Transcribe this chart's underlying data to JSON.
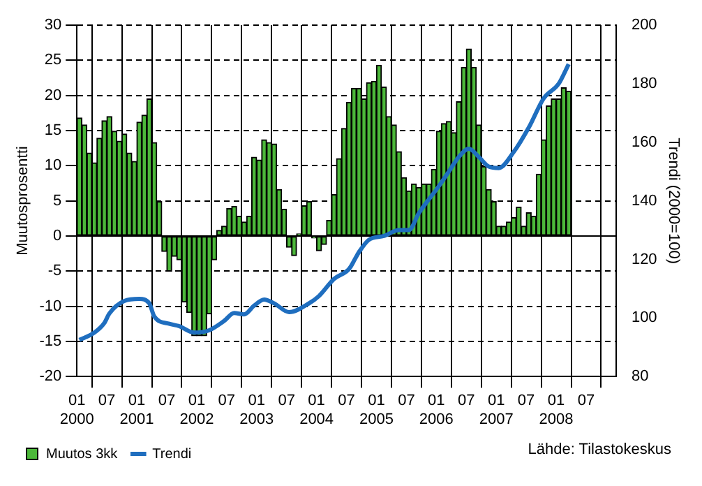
{
  "chart_data": {
    "type": "bar",
    "ylabel": "Muutosprosentti",
    "y2label": "Trendi (2000=100)",
    "x": [
      "2000-01",
      "2000-02",
      "2000-03",
      "2000-04",
      "2000-05",
      "2000-06",
      "2000-07",
      "2000-08",
      "2000-09",
      "2000-10",
      "2000-11",
      "2000-12",
      "2001-01",
      "2001-02",
      "2001-03",
      "2001-04",
      "2001-05",
      "2001-06",
      "2001-07",
      "2001-08",
      "2001-09",
      "2001-10",
      "2001-11",
      "2001-12",
      "2002-01",
      "2002-02",
      "2002-03",
      "2002-04",
      "2002-05",
      "2002-06",
      "2002-07",
      "2002-08",
      "2002-09",
      "2002-10",
      "2002-11",
      "2002-12",
      "2003-01",
      "2003-02",
      "2003-03",
      "2003-04",
      "2003-05",
      "2003-06",
      "2003-07",
      "2003-08",
      "2003-09",
      "2003-10",
      "2003-11",
      "2003-12",
      "2004-01",
      "2004-02",
      "2004-03",
      "2004-04",
      "2004-05",
      "2004-06",
      "2004-07",
      "2004-08",
      "2004-09",
      "2004-10",
      "2004-11",
      "2004-12",
      "2005-01",
      "2005-02",
      "2005-03",
      "2005-04",
      "2005-05",
      "2005-06",
      "2005-07",
      "2005-08",
      "2005-09",
      "2005-10",
      "2005-11",
      "2005-12",
      "2006-01",
      "2006-02",
      "2006-03",
      "2006-04",
      "2006-05",
      "2006-06",
      "2006-07",
      "2006-08",
      "2006-09",
      "2006-10",
      "2006-11",
      "2006-12",
      "2007-01",
      "2007-02",
      "2007-03",
      "2007-04",
      "2007-05",
      "2007-06",
      "2007-07",
      "2007-08",
      "2007-09",
      "2007-10",
      "2007-11",
      "2007-12",
      "2008-01",
      "2008-02",
      "2008-03"
    ],
    "series": [
      {
        "name": "Muutos 3kk",
        "color": "#4cb83a",
        "values": [
          16.8,
          15.8,
          11.8,
          10.4,
          13.9,
          16.4,
          17.0,
          14.9,
          13.5,
          14.5,
          11.8,
          10.6,
          16.2,
          17.2,
          19.5,
          13.3,
          4.9,
          -2.2,
          -5.0,
          -2.9,
          -3.4,
          -9.4,
          -10.9,
          -14.2,
          -14.2,
          -14.2,
          -11.1,
          -3.4,
          0.8,
          1.4,
          3.9,
          4.2,
          2.8,
          2.0,
          2.8,
          11.2,
          10.8,
          13.7,
          13.3,
          13.1,
          6.6,
          3.8,
          -1.6,
          -2.8,
          0.3,
          4.3,
          4.9,
          -0.3,
          -2.1,
          -1.2,
          2.2,
          5.9,
          11.0,
          15.3,
          19.0,
          21.0,
          21.0,
          19.5,
          21.8,
          22.0,
          24.3,
          21.2,
          17.0,
          15.8,
          12.0,
          8.3,
          6.4,
          7.4,
          6.9,
          7.4,
          7.4,
          9.5,
          14.9,
          16.0,
          16.3,
          14.7,
          19.1,
          24.0,
          26.6,
          24.0,
          15.8,
          9.9,
          6.6,
          4.9,
          1.4,
          1.4,
          2.0,
          2.6,
          4.1,
          1.4,
          3.3,
          2.8,
          8.8,
          13.7,
          18.5,
          19.5,
          19.5,
          21.1,
          20.6
        ]
      },
      {
        "name": "Trendi",
        "type": "line",
        "axis": "y2",
        "color": "#1f6ebf",
        "x": [
          "2000-01",
          "2000-04",
          "2000-06",
          "2000-07",
          "2000-10",
          "2001-01",
          "2001-03",
          "2001-04",
          "2001-07",
          "2001-09",
          "2001-12",
          "2002-03",
          "2002-06",
          "2002-08",
          "2002-10",
          "2002-12",
          "2003-02",
          "2003-04",
          "2003-07",
          "2003-11",
          "2004-01",
          "2004-04",
          "2004-07",
          "2004-09",
          "2004-11",
          "2005-02",
          "2005-05",
          "2005-07",
          "2005-09",
          "2006-01",
          "2006-03",
          "2006-05",
          "2006-07",
          "2006-09",
          "2006-11",
          "2007-01",
          "2007-04",
          "2007-07",
          "2007-10",
          "2008-01",
          "2008-03"
        ],
        "values": [
          92.5,
          95,
          98.3,
          101.5,
          105.8,
          106.5,
          105,
          100.5,
          98,
          97.2,
          95,
          95.8,
          99,
          101.7,
          101.2,
          104.2,
          106.3,
          105,
          102,
          105,
          107.5,
          113.3,
          116.7,
          122.5,
          126.7,
          128,
          130,
          130,
          135.8,
          145,
          150,
          155,
          157.8,
          155,
          151.7,
          151.2,
          156.7,
          165,
          175,
          180,
          186.7
        ]
      }
    ],
    "xlim": [
      "2000-01",
      "2009-01"
    ],
    "xticks": [
      {
        "value": "2000-01",
        "label": "01\n2000"
      },
      {
        "value": "2000-07",
        "label": "07"
      },
      {
        "value": "2001-01",
        "label": "01\n2001"
      },
      {
        "value": "2001-07",
        "label": "07"
      },
      {
        "value": "2002-01",
        "label": "01\n2002"
      },
      {
        "value": "2002-07",
        "label": "07"
      },
      {
        "value": "2003-01",
        "label": "01\n2003"
      },
      {
        "value": "2003-07",
        "label": "07"
      },
      {
        "value": "2004-01",
        "label": "01\n2004"
      },
      {
        "value": "2004-07",
        "label": "07"
      },
      {
        "value": "2005-01",
        "label": "01\n2005"
      },
      {
        "value": "2005-07",
        "label": "07"
      },
      {
        "value": "2006-01",
        "label": "01\n2006"
      },
      {
        "value": "2006-07",
        "label": "07"
      },
      {
        "value": "2007-01",
        "label": "01\n2007"
      },
      {
        "value": "2007-07",
        "label": "07"
      },
      {
        "value": "2008-01",
        "label": "01\n2008"
      },
      {
        "value": "2008-07",
        "label": "07"
      }
    ],
    "ylim": [
      -20,
      30
    ],
    "yticks": [
      -20,
      -15,
      -10,
      -5,
      0,
      5,
      10,
      15,
      20,
      25,
      30
    ],
    "y2lim": [
      80,
      200
    ],
    "y2ticks": [
      80,
      100,
      120,
      140,
      160,
      180,
      200
    ],
    "grid": true,
    "legend": "bottom left",
    "annotations": [
      "Lähde: Tilastokeskus"
    ]
  }
}
